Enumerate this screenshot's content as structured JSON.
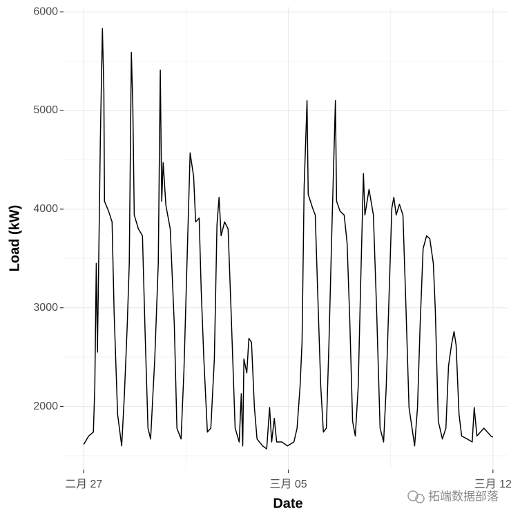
{
  "chart_data": {
    "type": "line",
    "x_label": "Date",
    "y_label": "Load (kW)",
    "watermark": "拓端数据部落",
    "xlim": [
      -0.69,
      14.5
    ],
    "ylim": [
      1360,
      6050
    ],
    "xticks": [
      {
        "value": 0,
        "label": "二月 27"
      },
      {
        "value": 7,
        "label": "三月 05"
      },
      {
        "value": 14,
        "label": "三月 12"
      }
    ],
    "yticks": [
      2000,
      3000,
      4000,
      5000,
      6000
    ],
    "grid": true,
    "series": [
      {
        "color": "#000000",
        "x": [
          0,
          0.17,
          0.33,
          0.38,
          0.43,
          0.47,
          0.52,
          0.57,
          0.64,
          0.69,
          0.71,
          0.85,
          0.97,
          1.04,
          1.16,
          1.3,
          1.39,
          1.49,
          1.56,
          1.63,
          1.68,
          1.73,
          1.87,
          2.01,
          2.1,
          2.2,
          2.29,
          2.43,
          2.55,
          2.62,
          2.67,
          2.72,
          2.81,
          2.96,
          3.1,
          3.19,
          3.33,
          3.43,
          3.52,
          3.64,
          3.76,
          3.83,
          3.95,
          4.02,
          4.11,
          4.23,
          4.35,
          4.47,
          4.56,
          4.63,
          4.7,
          4.82,
          4.94,
          5.04,
          5.18,
          5.32,
          5.39,
          5.44,
          5.48,
          5.58,
          5.65,
          5.74,
          5.84,
          5.93,
          6.12,
          6.26,
          6.36,
          6.43,
          6.52,
          6.6,
          6.78,
          6.97,
          7.19,
          7.3,
          7.4,
          7.47,
          7.54,
          7.64,
          7.68,
          7.83,
          7.92,
          8.01,
          8.11,
          8.2,
          8.3,
          8.39,
          8.49,
          8.61,
          8.65,
          8.77,
          8.91,
          9.01,
          9.1,
          9.2,
          9.29,
          9.39,
          9.48,
          9.57,
          9.62,
          9.76,
          9.91,
          10.02,
          10.14,
          10.26,
          10.35,
          10.45,
          10.54,
          10.61,
          10.69,
          10.8,
          10.92,
          11.02,
          11.13,
          11.32,
          11.42,
          11.51,
          11.61,
          11.73,
          11.84,
          11.96,
          12.03,
          12.13,
          12.27,
          12.39,
          12.48,
          12.58,
          12.67,
          12.74,
          12.84,
          12.93,
          13.12,
          13.29,
          13.36,
          13.45,
          13.57,
          13.69,
          13.81,
          13.93,
          14
        ],
        "values": [
          1615,
          1700,
          1740,
          2200,
          3450,
          2550,
          3600,
          4700,
          5830,
          5200,
          4080,
          3980,
          3870,
          2960,
          1920,
          1600,
          2100,
          2830,
          3450,
          5590,
          5060,
          3940,
          3800,
          3730,
          2750,
          1780,
          1670,
          2480,
          3450,
          5410,
          4080,
          4470,
          4040,
          3800,
          2830,
          1780,
          1670,
          2370,
          3310,
          4570,
          4330,
          3870,
          3910,
          3170,
          2480,
          1740,
          1780,
          2480,
          3840,
          4120,
          3730,
          3870,
          3800,
          2970,
          1780,
          1640,
          2130,
          1600,
          2480,
          2340,
          2690,
          2650,
          1990,
          1670,
          1600,
          1570,
          1990,
          1640,
          1880,
          1640,
          1640,
          1600,
          1640,
          1780,
          2200,
          2650,
          4220,
          5100,
          4150,
          4010,
          3940,
          3100,
          2200,
          1740,
          1780,
          2650,
          3800,
          5100,
          4080,
          3980,
          3940,
          3660,
          2900,
          1850,
          1700,
          2200,
          3310,
          4360,
          3940,
          4200,
          3940,
          2970,
          1780,
          1640,
          2200,
          3170,
          4010,
          4120,
          3940,
          4050,
          3940,
          3040,
          1990,
          1600,
          1990,
          2830,
          3600,
          3730,
          3700,
          3450,
          2970,
          1850,
          1670,
          1780,
          2410,
          2620,
          2760,
          2620,
          1920,
          1700,
          1670,
          1640,
          1990,
          1700,
          1740,
          1780,
          1740,
          1700,
          1690
        ]
      }
    ]
  }
}
